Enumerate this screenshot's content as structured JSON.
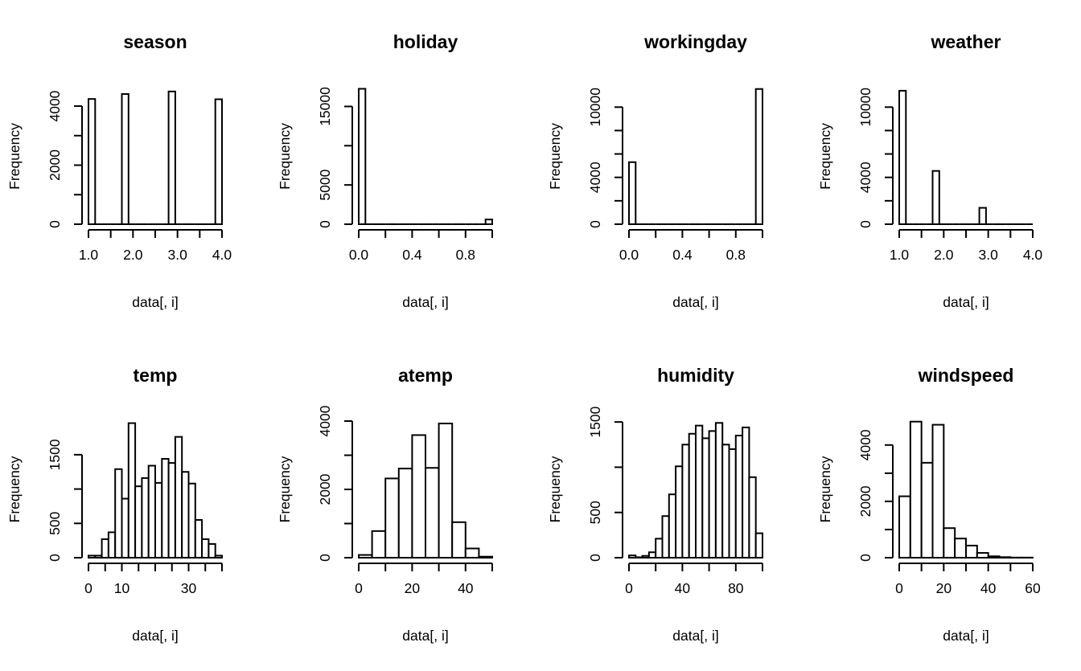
{
  "chart_data": [
    {
      "type": "bar",
      "title": "season",
      "xlabel": "data[, i]",
      "ylabel": "Frequency",
      "bins": [
        [
          1.0,
          1.15,
          4242
        ],
        [
          1.15,
          1.3,
          0
        ],
        [
          1.3,
          1.45,
          0
        ],
        [
          1.45,
          1.6,
          0
        ],
        [
          1.6,
          1.75,
          0
        ],
        [
          1.75,
          1.9,
          4409
        ],
        [
          1.9,
          2.05,
          0
        ],
        [
          2.05,
          2.2,
          0
        ],
        [
          2.2,
          2.35,
          0
        ],
        [
          2.35,
          2.5,
          0
        ],
        [
          2.5,
          2.65,
          0
        ],
        [
          2.65,
          2.8,
          0
        ],
        [
          2.8,
          2.95,
          4496
        ],
        [
          2.95,
          3.1,
          0
        ],
        [
          3.1,
          3.25,
          0
        ],
        [
          3.25,
          3.4,
          0
        ],
        [
          3.4,
          3.55,
          0
        ],
        [
          3.55,
          3.7,
          0
        ],
        [
          3.7,
          3.85,
          0
        ],
        [
          3.85,
          4.0,
          4232
        ]
      ],
      "xlim": [
        1.0,
        4.0
      ],
      "ylim": [
        0,
        4600
      ],
      "xticks": [
        1.0,
        1.5,
        2.0,
        2.5,
        3.0,
        3.5,
        4.0
      ],
      "xtick_labels": [
        {
          "v": 1.0,
          "t": "1.0"
        },
        {
          "v": 2.0,
          "t": "2.0"
        },
        {
          "v": 3.0,
          "t": "3.0"
        },
        {
          "v": 4.0,
          "t": "4.0"
        }
      ],
      "yticks": [
        0,
        1000,
        2000,
        3000,
        4000
      ],
      "ytick_labels": [
        {
          "v": 0,
          "t": "0"
        },
        {
          "v": 2000,
          "t": "2000"
        },
        {
          "v": 4000,
          "t": "4000"
        }
      ]
    },
    {
      "type": "bar",
      "title": "holiday",
      "xlabel": "data[, i]",
      "ylabel": "Frequency",
      "bins": [
        [
          0.0,
          0.05,
          17250
        ],
        [
          0.05,
          0.1,
          0
        ],
        [
          0.1,
          0.15,
          0
        ],
        [
          0.15,
          0.2,
          0
        ],
        [
          0.2,
          0.25,
          0
        ],
        [
          0.25,
          0.3,
          0
        ],
        [
          0.3,
          0.35,
          0
        ],
        [
          0.35,
          0.4,
          0
        ],
        [
          0.4,
          0.45,
          0
        ],
        [
          0.45,
          0.5,
          0
        ],
        [
          0.5,
          0.55,
          0
        ],
        [
          0.55,
          0.6,
          0
        ],
        [
          0.6,
          0.65,
          0
        ],
        [
          0.65,
          0.7,
          0
        ],
        [
          0.7,
          0.75,
          0
        ],
        [
          0.75,
          0.8,
          0
        ],
        [
          0.8,
          0.85,
          0
        ],
        [
          0.85,
          0.9,
          0
        ],
        [
          0.9,
          0.95,
          0
        ],
        [
          0.95,
          1.0,
          600
        ]
      ],
      "xlim": [
        0.0,
        1.0
      ],
      "ylim": [
        0,
        17300
      ],
      "xticks": [
        0.0,
        0.2,
        0.4,
        0.6,
        0.8,
        1.0
      ],
      "xtick_labels": [
        {
          "v": 0.0,
          "t": "0.0"
        },
        {
          "v": 0.4,
          "t": "0.4"
        },
        {
          "v": 0.8,
          "t": "0.8"
        }
      ],
      "yticks": [
        0,
        5000,
        10000,
        15000
      ],
      "ytick_labels": [
        {
          "v": 0,
          "t": "0"
        },
        {
          "v": 5000,
          "t": "5000"
        },
        {
          "v": 15000,
          "t": "15000"
        }
      ]
    },
    {
      "type": "bar",
      "title": "workingday",
      "xlabel": "data[, i]",
      "ylabel": "Frequency",
      "bins": [
        [
          0.0,
          0.05,
          5300
        ],
        [
          0.05,
          0.1,
          0
        ],
        [
          0.1,
          0.15,
          0
        ],
        [
          0.15,
          0.2,
          0
        ],
        [
          0.2,
          0.25,
          0
        ],
        [
          0.25,
          0.3,
          0
        ],
        [
          0.3,
          0.35,
          0
        ],
        [
          0.35,
          0.4,
          0
        ],
        [
          0.4,
          0.45,
          0
        ],
        [
          0.45,
          0.5,
          0
        ],
        [
          0.5,
          0.55,
          0
        ],
        [
          0.55,
          0.6,
          0
        ],
        [
          0.6,
          0.65,
          0
        ],
        [
          0.65,
          0.7,
          0
        ],
        [
          0.7,
          0.75,
          0
        ],
        [
          0.75,
          0.8,
          0
        ],
        [
          0.8,
          0.85,
          0
        ],
        [
          0.85,
          0.9,
          0
        ],
        [
          0.9,
          0.95,
          0
        ],
        [
          0.95,
          1.0,
          11550
        ]
      ],
      "xlim": [
        0.0,
        1.0
      ],
      "ylim": [
        0,
        11600
      ],
      "xticks": [
        0.0,
        0.2,
        0.4,
        0.6,
        0.8,
        1.0
      ],
      "xtick_labels": [
        {
          "v": 0.0,
          "t": "0.0"
        },
        {
          "v": 0.4,
          "t": "0.4"
        },
        {
          "v": 0.8,
          "t": "0.8"
        }
      ],
      "yticks": [
        0,
        2000,
        4000,
        6000,
        8000,
        10000
      ],
      "ytick_labels": [
        {
          "v": 0,
          "t": "0"
        },
        {
          "v": 4000,
          "t": "4000"
        },
        {
          "v": 10000,
          "t": "10000"
        }
      ]
    },
    {
      "type": "bar",
      "title": "weather",
      "xlabel": "data[, i]",
      "ylabel": "Frequency",
      "bins": [
        [
          1.0,
          1.15,
          11400
        ],
        [
          1.15,
          1.3,
          0
        ],
        [
          1.3,
          1.45,
          0
        ],
        [
          1.45,
          1.6,
          0
        ],
        [
          1.6,
          1.75,
          0
        ],
        [
          1.75,
          1.9,
          4550
        ],
        [
          1.9,
          2.05,
          0
        ],
        [
          2.05,
          2.2,
          0
        ],
        [
          2.2,
          2.35,
          0
        ],
        [
          2.35,
          2.5,
          0
        ],
        [
          2.5,
          2.65,
          0
        ],
        [
          2.65,
          2.8,
          0
        ],
        [
          2.8,
          2.95,
          1400
        ],
        [
          2.95,
          3.1,
          0
        ],
        [
          3.1,
          3.25,
          0
        ],
        [
          3.25,
          3.4,
          0
        ],
        [
          3.4,
          3.55,
          0
        ],
        [
          3.55,
          3.7,
          0
        ],
        [
          3.7,
          3.85,
          0
        ],
        [
          3.85,
          4.0,
          0
        ]
      ],
      "xlim": [
        1.0,
        4.0
      ],
      "ylim": [
        0,
        11600
      ],
      "xticks": [
        1.0,
        1.5,
        2.0,
        2.5,
        3.0,
        3.5,
        4.0
      ],
      "xtick_labels": [
        {
          "v": 1.0,
          "t": "1.0"
        },
        {
          "v": 2.0,
          "t": "2.0"
        },
        {
          "v": 3.0,
          "t": "3.0"
        },
        {
          "v": 4.0,
          "t": "4.0"
        }
      ],
      "yticks": [
        0,
        2000,
        4000,
        6000,
        8000,
        10000
      ],
      "ytick_labels": [
        {
          "v": 0,
          "t": "0"
        },
        {
          "v": 4000,
          "t": "4000"
        },
        {
          "v": 10000,
          "t": "10000"
        }
      ]
    },
    {
      "type": "bar",
      "title": "temp",
      "xlabel": "data[, i]",
      "ylabel": "Frequency",
      "bins": [
        [
          0,
          2,
          30
        ],
        [
          2,
          4,
          30
        ],
        [
          4,
          6,
          270
        ],
        [
          6,
          8,
          370
        ],
        [
          8,
          10,
          1290
        ],
        [
          10,
          12,
          860
        ],
        [
          12,
          14,
          1960
        ],
        [
          14,
          16,
          1040
        ],
        [
          16,
          18,
          1160
        ],
        [
          18,
          20,
          1340
        ],
        [
          20,
          22,
          1090
        ],
        [
          22,
          24,
          1440
        ],
        [
          24,
          26,
          1380
        ],
        [
          26,
          28,
          1760
        ],
        [
          28,
          30,
          1250
        ],
        [
          30,
          32,
          1080
        ],
        [
          32,
          34,
          550
        ],
        [
          34,
          36,
          270
        ],
        [
          36,
          38,
          200
        ],
        [
          38,
          40,
          30
        ]
      ],
      "xlim": [
        0,
        40
      ],
      "ylim": [
        0,
        1990
      ],
      "xticks": [
        0,
        5,
        10,
        15,
        20,
        25,
        30,
        35,
        40
      ],
      "xtick_labels": [
        {
          "v": 0,
          "t": "0"
        },
        {
          "v": 10,
          "t": "10"
        },
        {
          "v": 30,
          "t": "30"
        }
      ],
      "yticks": [
        0,
        500,
        1000,
        1500
      ],
      "ytick_labels": [
        {
          "v": 0,
          "t": "0"
        },
        {
          "v": 500,
          "t": "500"
        },
        {
          "v": 1500,
          "t": "1500"
        }
      ]
    },
    {
      "type": "bar",
      "title": "atemp",
      "xlabel": "data[, i]",
      "ylabel": "Frequency",
      "bins": [
        [
          0,
          5,
          80
        ],
        [
          5,
          10,
          780
        ],
        [
          10,
          15,
          2320
        ],
        [
          15,
          20,
          2610
        ],
        [
          20,
          25,
          3590
        ],
        [
          25,
          30,
          2630
        ],
        [
          30,
          35,
          3930
        ],
        [
          35,
          40,
          1040
        ],
        [
          40,
          45,
          270
        ],
        [
          45,
          50,
          30
        ]
      ],
      "xlim": [
        0,
        50
      ],
      "ylim": [
        0,
        4000
      ],
      "xticks": [
        0,
        10,
        20,
        30,
        40,
        50
      ],
      "xtick_labels": [
        {
          "v": 0,
          "t": "0"
        },
        {
          "v": 20,
          "t": "20"
        },
        {
          "v": 40,
          "t": "40"
        }
      ],
      "yticks": [
        0,
        1000,
        2000,
        3000,
        4000
      ],
      "ytick_labels": [
        {
          "v": 0,
          "t": "0"
        },
        {
          "v": 2000,
          "t": "2000"
        },
        {
          "v": 4000,
          "t": "4000"
        }
      ]
    },
    {
      "type": "bar",
      "title": "humidity",
      "xlabel": "data[, i]",
      "ylabel": "Frequency",
      "bins": [
        [
          0,
          5,
          25
        ],
        [
          5,
          10,
          5
        ],
        [
          10,
          15,
          20
        ],
        [
          15,
          20,
          60
        ],
        [
          20,
          25,
          210
        ],
        [
          25,
          30,
          460
        ],
        [
          30,
          35,
          700
        ],
        [
          35,
          40,
          1010
        ],
        [
          40,
          45,
          1250
        ],
        [
          45,
          50,
          1370
        ],
        [
          50,
          55,
          1460
        ],
        [
          55,
          60,
          1320
        ],
        [
          60,
          65,
          1400
        ],
        [
          65,
          70,
          1490
        ],
        [
          70,
          75,
          1250
        ],
        [
          75,
          80,
          1200
        ],
        [
          80,
          85,
          1350
        ],
        [
          85,
          90,
          1440
        ],
        [
          90,
          95,
          890
        ],
        [
          95,
          100,
          270
        ]
      ],
      "xlim": [
        0,
        100
      ],
      "ylim": [
        0,
        1510
      ],
      "xticks": [
        0,
        20,
        40,
        60,
        80,
        100
      ],
      "xtick_labels": [
        {
          "v": 0,
          "t": "0"
        },
        {
          "v": 40,
          "t": "40"
        },
        {
          "v": 80,
          "t": "80"
        }
      ],
      "yticks": [
        0,
        500,
        1000,
        1500
      ],
      "ytick_labels": [
        {
          "v": 0,
          "t": "0"
        },
        {
          "v": 500,
          "t": "500"
        },
        {
          "v": 1500,
          "t": "1500"
        }
      ]
    },
    {
      "type": "bar",
      "title": "windspeed",
      "xlabel": "data[, i]",
      "ylabel": "Frequency",
      "bins": [
        [
          0,
          5,
          2180
        ],
        [
          5,
          10,
          4830
        ],
        [
          10,
          15,
          3370
        ],
        [
          15,
          20,
          4720
        ],
        [
          20,
          25,
          1050
        ],
        [
          25,
          30,
          680
        ],
        [
          30,
          35,
          430
        ],
        [
          35,
          40,
          170
        ],
        [
          40,
          45,
          50
        ],
        [
          45,
          50,
          20
        ],
        [
          50,
          55,
          5
        ],
        [
          55,
          60,
          5
        ]
      ],
      "xlim": [
        0,
        60
      ],
      "ylim": [
        0,
        4850
      ],
      "xticks": [
        0,
        10,
        20,
        30,
        40,
        50,
        60
      ],
      "xtick_labels": [
        {
          "v": 0,
          "t": "0"
        },
        {
          "v": 20,
          "t": "20"
        },
        {
          "v": 40,
          "t": "40"
        },
        {
          "v": 60,
          "t": "60"
        }
      ],
      "yticks": [
        0,
        1000,
        2000,
        3000,
        4000
      ],
      "ytick_labels": [
        {
          "v": 0,
          "t": "0"
        },
        {
          "v": 2000,
          "t": "2000"
        },
        {
          "v": 4000,
          "t": "4000"
        }
      ]
    }
  ]
}
